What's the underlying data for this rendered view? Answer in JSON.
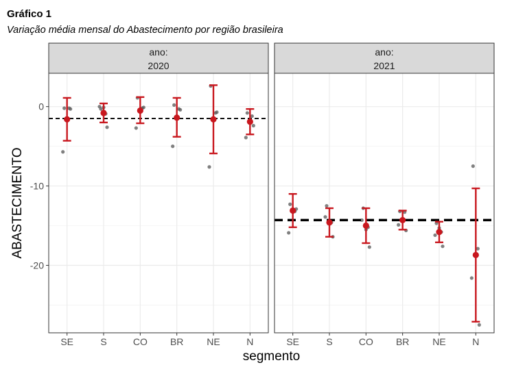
{
  "header": {
    "title": "Gráfico 1",
    "subtitle": "Variação média mensal do Abastecimento por região brasileira"
  },
  "colors": {
    "error_bar": "#c8171e",
    "mean_point": "#c8171e",
    "raw_point": "#555555",
    "strip_bg": "#d9d9d9",
    "grid": "#ebebeb",
    "reference_line": "#000000"
  },
  "chart_data": {
    "type": "scatter",
    "facet_variable": "ano:",
    "xlabel": "segmento",
    "ylabel": "ABASTECIMENTO",
    "ylim": [
      -28.5,
      4.2
    ],
    "yticks": [
      0,
      -10,
      -20
    ],
    "ytick_labels": [
      "0",
      "-10",
      "-20"
    ],
    "categories": [
      "SE",
      "S",
      "CO",
      "BR",
      "NE",
      "N"
    ],
    "panels": [
      {
        "facet_label": "ano:",
        "facet_value": "2020",
        "reference_line": -1.5,
        "reference_style": "dashed-thin",
        "means": [
          -1.6,
          -0.8,
          -0.5,
          -1.4,
          -1.6,
          -1.9
        ],
        "ci_low": [
          -4.3,
          -2.0,
          -2.1,
          -3.8,
          -5.9,
          -3.5
        ],
        "ci_high": [
          1.1,
          0.4,
          1.2,
          1.1,
          2.7,
          -0.3
        ],
        "points": [
          [
            -0.2,
            -0.3,
            -5.7,
            -0.2,
            -1.6
          ],
          [
            -0.3,
            -2.6,
            0.0,
            -0.9,
            -0.1
          ],
          [
            1.1,
            -0.1,
            -2.7,
            -0.2,
            -0.3
          ],
          [
            0.2,
            -0.4,
            -5.0,
            -0.3,
            -1.2
          ],
          [
            2.6,
            -0.7,
            -7.6,
            -0.8,
            -1.7
          ],
          [
            -0.8,
            -2.4,
            -3.9,
            -1.2,
            -2.0
          ]
        ]
      },
      {
        "facet_label": "ano:",
        "facet_value": "2021",
        "reference_line": -14.3,
        "reference_style": "dashed-thick",
        "means": [
          -13.1,
          -14.6,
          -15.0,
          -14.3,
          -15.8,
          -18.7
        ],
        "ci_low": [
          -15.2,
          -16.4,
          -17.2,
          -15.5,
          -17.1,
          -27.1
        ],
        "ci_high": [
          -11.0,
          -12.8,
          -12.8,
          -13.1,
          -14.5,
          -10.3
        ],
        "points": [
          [
            -12.3,
            -12.9,
            -15.9,
            -13.2,
            -13.0
          ],
          [
            -12.5,
            -16.4,
            -13.9,
            -14.6,
            -14.8
          ],
          [
            -12.8,
            -17.7,
            -14.3,
            -15.2,
            -15.5
          ],
          [
            -13.2,
            -15.6,
            -14.9,
            -13.3,
            -14.3
          ],
          [
            -14.7,
            -17.6,
            -16.2,
            -15.8,
            -15.3
          ],
          [
            -7.5,
            -27.5,
            -21.6,
            -17.9,
            -18.7
          ]
        ]
      }
    ]
  }
}
